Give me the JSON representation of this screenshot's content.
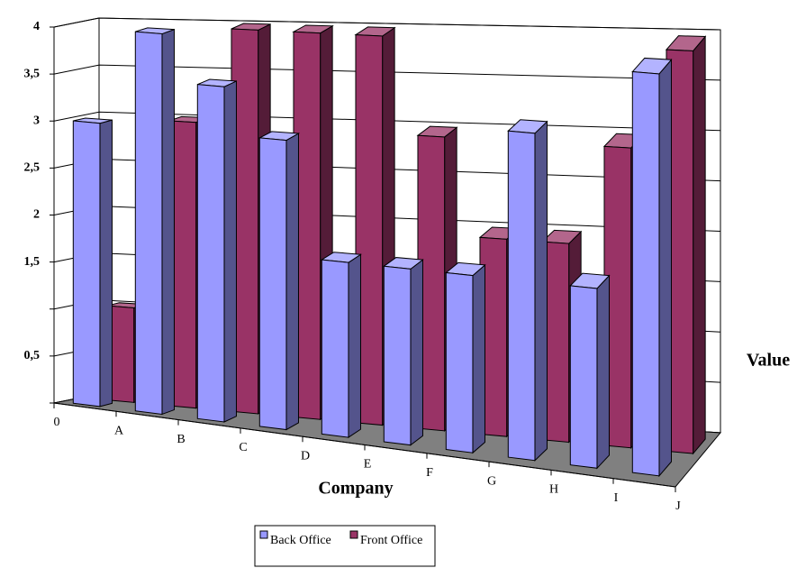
{
  "chart_data": {
    "type": "bar3d",
    "y_axis_label": "Value",
    "x_axis_label": "Company",
    "categories": [
      null,
      null,
      null,
      null,
      null,
      null,
      null,
      null,
      null,
      null
    ],
    "x_tick_labels": [
      "0",
      "A",
      "B",
      "C",
      "D",
      "E",
      "F",
      "G",
      "H",
      "I",
      "J"
    ],
    "series": [
      {
        "name": "Back Office",
        "color": "#9999ff",
        "values": [
          3,
          4,
          3.5,
          3,
          1.8,
          1.8,
          1.8,
          3.3,
          1.8,
          4
        ]
      },
      {
        "name": "Front Office",
        "color": "#993366",
        "values": [
          1,
          3,
          4,
          4,
          4,
          3,
          2,
          2,
          3,
          4
        ]
      }
    ],
    "ylim": [
      0,
      4
    ],
    "yticks": [
      {
        "value": 0,
        "label": null
      },
      {
        "value": 0.5,
        "label": "0,5"
      },
      {
        "value": 1,
        "label": null
      },
      {
        "value": 1.5,
        "label": "1,5"
      },
      2,
      {
        "value": 2.5,
        "label": "2,5"
      },
      3,
      {
        "value": 3.5,
        "label": "3,5"
      },
      4
    ],
    "grid": true
  }
}
